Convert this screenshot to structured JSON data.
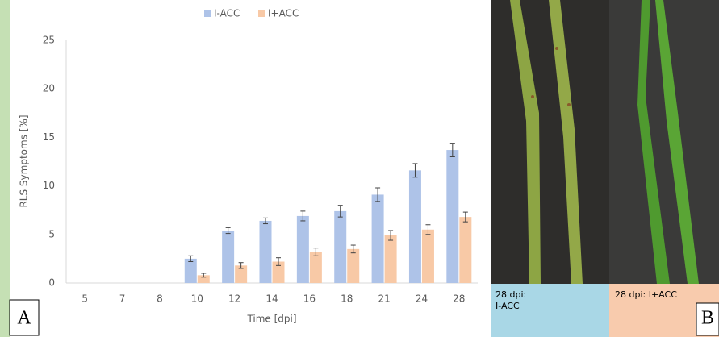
{
  "chart_data": {
    "type": "bar",
    "x_label": "Time [dpi]",
    "y_label": "RLS Symptoms [%]",
    "categories": [
      "5",
      "7",
      "8",
      "10",
      "12",
      "14",
      "16",
      "18",
      "21",
      "24",
      "28"
    ],
    "series": [
      {
        "name": "I-ACC",
        "color": "#aec3e8",
        "values": [
          0,
          0,
          0,
          2.5,
          5.4,
          6.4,
          6.9,
          7.4,
          9.1,
          11.6,
          13.7
        ],
        "errors": [
          0,
          0,
          0,
          0.3,
          0.3,
          0.3,
          0.5,
          0.6,
          0.7,
          0.7,
          0.7
        ]
      },
      {
        "name": "I+ACC",
        "color": "#f8c9a6",
        "values": [
          0,
          0,
          0,
          0.8,
          1.8,
          2.2,
          3.2,
          3.5,
          4.9,
          5.5,
          6.8
        ],
        "errors": [
          0,
          0,
          0,
          0.2,
          0.3,
          0.4,
          0.4,
          0.4,
          0.5,
          0.5,
          0.5
        ]
      }
    ],
    "ylim": [
      0,
      25
    ],
    "yticks": [
      0,
      5,
      10,
      15,
      20,
      25
    ],
    "grid": false,
    "legend": "top"
  },
  "panel_labels": [
    "A",
    "B"
  ],
  "photo_captions": [
    {
      "lines": [
        "28 dpi:",
        "I-ACC"
      ]
    },
    {
      "lines": [
        "28 dpi: I+ACC"
      ]
    }
  ]
}
